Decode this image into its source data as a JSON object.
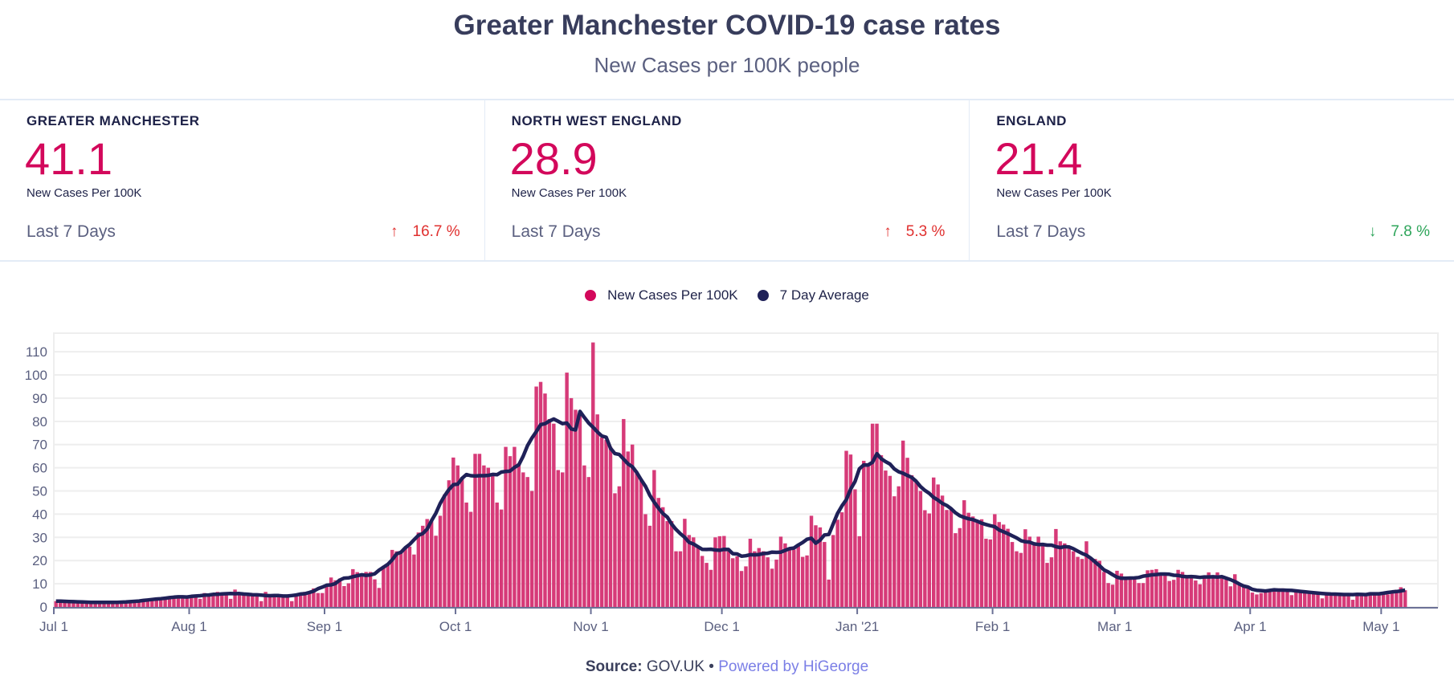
{
  "header": {
    "title": "Greater Manchester COVID-19 case rates",
    "subtitle": "New Cases per 100K people"
  },
  "cards": [
    {
      "label": "GREATER MANCHESTER",
      "value": "41.1",
      "unit": "New Cases Per 100K",
      "period": "Last 7 Days",
      "change": "16.7 %",
      "direction": "up",
      "arrow": "↑"
    },
    {
      "label": "NORTH WEST ENGLAND",
      "value": "28.9",
      "unit": "New Cases Per 100K",
      "period": "Last 7 Days",
      "change": "5.3 %",
      "direction": "up",
      "arrow": "↑"
    },
    {
      "label": "ENGLAND",
      "value": "21.4",
      "unit": "New Cases Per 100K",
      "period": "Last 7 Days",
      "change": "7.8 %",
      "direction": "down",
      "arrow": "↓"
    }
  ],
  "colors": {
    "bars": "#d63a78",
    "line": "#1f2158",
    "up": "#e0302f",
    "down": "#2ea55a",
    "value": "#d3085b",
    "powered": "#7b7fe6"
  },
  "footer": {
    "source_label": "Source:",
    "source": "GOV.UK •",
    "powered": "Powered by HiGeorge"
  },
  "chart_data": {
    "type": "bar",
    "legend_position": "top",
    "grid": true,
    "xlabel": "",
    "ylabel": "",
    "dates": {
      "first": "2020-07-01",
      "last": "2021-05-06",
      "interval": "daily"
    },
    "x_range": [
      "2020-07-01",
      "2021-05-14"
    ],
    "ylim": [
      0,
      118
    ],
    "y_ticks": [
      "0",
      "10",
      "20",
      "30",
      "40",
      "50",
      "60",
      "70",
      "80",
      "90",
      "100",
      "110"
    ],
    "x_ticks": [
      {
        "date": "2020-07-01",
        "label": "Jul 1"
      },
      {
        "date": "2020-08-01",
        "label": "Aug 1"
      },
      {
        "date": "2020-09-01",
        "label": "Sep 1"
      },
      {
        "date": "2020-10-01",
        "label": "Oct 1"
      },
      {
        "date": "2020-11-01",
        "label": "Nov 1"
      },
      {
        "date": "2020-12-01",
        "label": "Dec 1"
      },
      {
        "date": "2021-01-01",
        "label": "Jan '21"
      },
      {
        "date": "2021-02-01",
        "label": "Feb 1"
      },
      {
        "date": "2021-03-01",
        "label": "Mar 1"
      },
      {
        "date": "2021-04-01",
        "label": "Apr 1"
      },
      {
        "date": "2021-05-01",
        "label": "May 1"
      }
    ],
    "series": [
      {
        "name": "New Cases Per 100K",
        "kind": "bar",
        "values": [
          2.5,
          2.5,
          2.5,
          2.5,
          2.5,
          2,
          2,
          2,
          2,
          2,
          2,
          2,
          2,
          2,
          2,
          2,
          2,
          2,
          2.5,
          2.5,
          3,
          3,
          3,
          3.5,
          3.5,
          4,
          4,
          4,
          4.5,
          4.5,
          5,
          4.5,
          4,
          3.5,
          6,
          5.5,
          5.5,
          6.5,
          5,
          6,
          3.5,
          7.5,
          6,
          6,
          6,
          5.5,
          4.5,
          2.5,
          6.5,
          5.5,
          5,
          5,
          5,
          5,
          2.5,
          5,
          5.5,
          6.5,
          6.5,
          8,
          6,
          6,
          9.2,
          12.7,
          11.5,
          12.2,
          9,
          10.2,
          16.3,
          15,
          13.6,
          15.1,
          15.1,
          11.9,
          8.2,
          17.7,
          18.5,
          24.6,
          24,
          23.7,
          25.5,
          26,
          22.6,
          32.1,
          35,
          37.9,
          37,
          30.7,
          39.3,
          48.5,
          54.6,
          64.4,
          61,
          56,
          45,
          41,
          66,
          66,
          61,
          60,
          57,
          45,
          42,
          69,
          65,
          69,
          62,
          58,
          56,
          50,
          95,
          97,
          92,
          81,
          79,
          59,
          58,
          101,
          90,
          85,
          83,
          61,
          56,
          114,
          83,
          73,
          72,
          69,
          49,
          52,
          81,
          67,
          70,
          58,
          55,
          40,
          35,
          59,
          47,
          43,
          37,
          37,
          24,
          24,
          38,
          31,
          30,
          26,
          22,
          19,
          16,
          30,
          30.5,
          30.6,
          24,
          21,
          21.8,
          15.5,
          17.5,
          29.4,
          24,
          25.4,
          24,
          21.4,
          16.5,
          20.4,
          30.3,
          27.4,
          24.7,
          24.7,
          26.8,
          21.6,
          22.2,
          39.3,
          35.2,
          34.3,
          28,
          11.8,
          31,
          37.6,
          40.8,
          67.3,
          65.7,
          50.7,
          30.5,
          63,
          60.7,
          79,
          79,
          65.4,
          58.8,
          56.5,
          47.7,
          52,
          71.7,
          64.3,
          56.8,
          54.2,
          50,
          41.7,
          40.3,
          55.8,
          52.8,
          48,
          41.8,
          42,
          31.8,
          34,
          46,
          40.6,
          39,
          36.8,
          37.8,
          29.4,
          29.1,
          40,
          36.6,
          35.5,
          33.7,
          28,
          24,
          23.3,
          33.5,
          30.3,
          27.4,
          30.3,
          26.6,
          19,
          21.4,
          33.6,
          28.3,
          27.4,
          25.6,
          24,
          21.6,
          20.7,
          28.3,
          20.7,
          20.7,
          19.9,
          15.1,
          10.3,
          9.6,
          15.6,
          14.4,
          12.4,
          12.4,
          11.8,
          10.3,
          10.3,
          15.8,
          16,
          16.3,
          14.1,
          14.1,
          11.2,
          11.7,
          16,
          15.1,
          13.5,
          13.5,
          11.4,
          9.8,
          12.6,
          14.9,
          13.5,
          14.9,
          13.5,
          11.8,
          8.9,
          14.1,
          10.3,
          8.9,
          9.1,
          6.2,
          5.4,
          6,
          7.2,
          7.7,
          7.7,
          8,
          8,
          7.2,
          5.1,
          7.2,
          7.2,
          7.2,
          6.6,
          6.4,
          6,
          3.7,
          6,
          6,
          6,
          5.7,
          5.7,
          5.7,
          3.1,
          5.4,
          6,
          5.7,
          6.4,
          5.4,
          5.4,
          5.4,
          5.4,
          6,
          7.4,
          8.5,
          7.2
        ]
      },
      {
        "name": "7 Day Average",
        "kind": "line",
        "method": "centered 7-day mean of New Cases Per 100K"
      }
    ]
  }
}
